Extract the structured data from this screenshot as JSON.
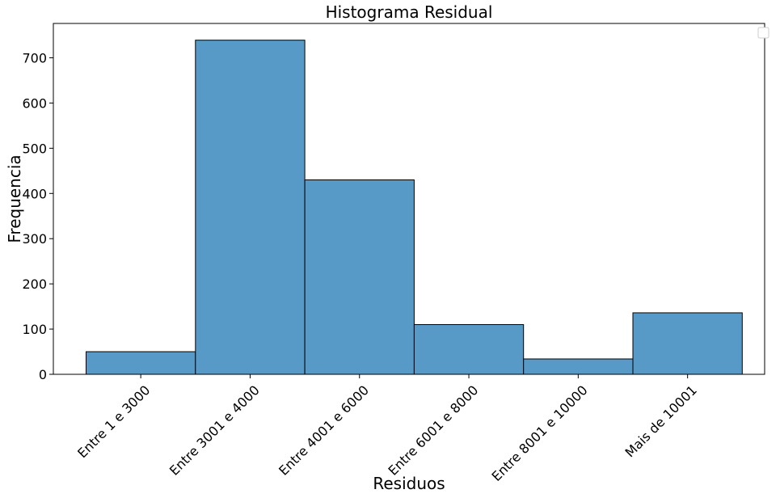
{
  "chart_data": {
    "type": "bar",
    "title": "Histograma Residual",
    "xlabel": "Residuos",
    "ylabel": "Frequencia",
    "categories": [
      "Entre 1 e 3000",
      "Entre 3001 e 4000",
      "Entre 4001 e 6000",
      "Entre 6001 e 8000",
      "Entre 8001 e 10000",
      "Mais de 10001"
    ],
    "values": [
      50,
      739,
      430,
      110,
      34,
      136
    ],
    "ylim": [
      0,
      776
    ],
    "yticks": [
      "0",
      "100",
      "200",
      "300",
      "400",
      "500",
      "600",
      "700"
    ],
    "grid": false,
    "legend": "top-right",
    "bar_color": "#5799c7",
    "edge_color": "#000000"
  }
}
